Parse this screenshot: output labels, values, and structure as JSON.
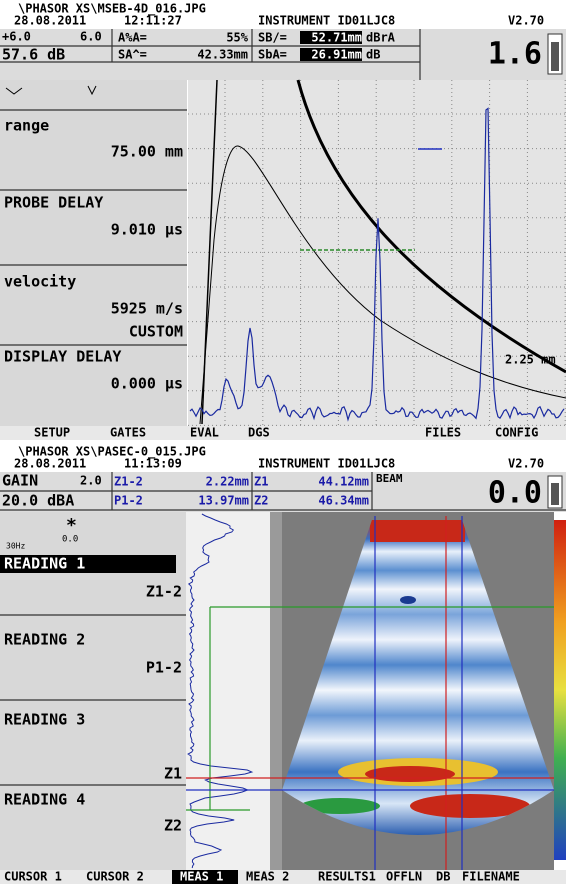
{
  "screens": [
    {
      "file": "\\PHASOR XS\\MSEB-4D_016.JPG",
      "date": "28.08.2011",
      "time": "12:11:27",
      "instrument": "INSTRUMENT ID01LJC8",
      "version": "V2.70",
      "gain_step": "+6.0",
      "gain_fine": "6.0",
      "gain": "57.6 dB",
      "big_value": "1.6",
      "readings": [
        {
          "label": "A%A=",
          "value": "55%"
        },
        {
          "label": "SA^=",
          "value": "42.33mm"
        },
        {
          "label": "SB/=",
          "value": "52.71mm",
          "unit": "dBrA"
        },
        {
          "label": "SbA=",
          "value": "26.91mm",
          "unit": "dB"
        }
      ],
      "params": [
        {
          "name": "range",
          "value": "75.00 mm"
        },
        {
          "name": "PROBE DELAY",
          "value": "9.010 µs"
        },
        {
          "name": "velocity",
          "value": "5925 m/s",
          "mode": "CUSTOM"
        },
        {
          "name": "DISPLAY DELAY",
          "value": "0.000 µs"
        }
      ],
      "annotation": "2.25 mm",
      "menu": [
        "SETUP",
        "GATES",
        "EVAL",
        "DGS",
        "FILES",
        "CONFIG"
      ]
    },
    {
      "file": "\\PHASOR XS\\PASEC-0_015.JPG",
      "date": "28.08.2011",
      "time": "11:13:09",
      "instrument": "INSTRUMENT ID01LJC8",
      "version": "V2.70",
      "gain_label": "GAIN",
      "gain_fine": "2.0",
      "gain": "20.0 dBA",
      "beam_label": "BEAM",
      "big_value": "0.0",
      "readings": [
        {
          "label": "Z1-2",
          "value": "2.22mm"
        },
        {
          "label": "P1-2",
          "value": "13.97mm"
        },
        {
          "label": "Z1",
          "value": "44.12mm"
        },
        {
          "label": "Z2",
          "value": "46.34mm"
        }
      ],
      "prf": "30Hz",
      "angle": "0.0",
      "panels": [
        {
          "name": "READING 1",
          "value": "Z1-2"
        },
        {
          "name": "READING 2",
          "value": "P1-2"
        },
        {
          "name": "READING 3",
          "value": "Z1"
        },
        {
          "name": "READING 4",
          "value": "Z2"
        }
      ],
      "menu": [
        "CURSOR 1",
        "CURSOR 2",
        "MEAS 1",
        "MEAS 2",
        "RESULTS1",
        "OFFLN",
        "DB",
        "FILENAME"
      ]
    }
  ]
}
